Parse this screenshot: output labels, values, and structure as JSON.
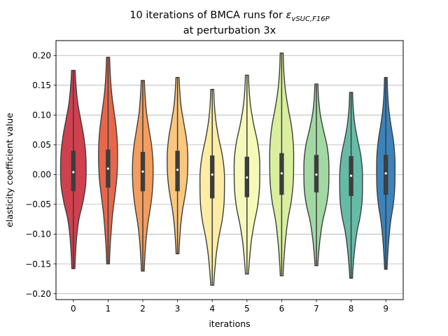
{
  "chart_data": {
    "type": "violin",
    "title_line1_main": "10 iterations of BMCA runs for ",
    "title_symbol": "ε",
    "title_subscript": "vSUC,F16P",
    "title_line2": "at perturbation 3x",
    "xlabel": "iterations",
    "ylabel": "elasticity coefficient value",
    "ylim": [
      -0.21,
      0.225
    ],
    "yticks": [
      "0.20",
      "0.15",
      "0.10",
      "0.05",
      "0.00",
      "−0.05",
      "−0.10",
      "−0.15",
      "−0.20"
    ],
    "ytick_values": [
      0.2,
      0.15,
      0.1,
      0.05,
      0.0,
      -0.05,
      -0.1,
      -0.15,
      -0.2
    ],
    "grid": "horizontal",
    "categories": [
      "0",
      "1",
      "2",
      "3",
      "4",
      "5",
      "6",
      "7",
      "8",
      "9"
    ],
    "series": [
      {
        "min": -0.158,
        "q1": -0.028,
        "median": 0.004,
        "q3": 0.04,
        "max": 0.175,
        "color": "#d0404f",
        "width": 0.86,
        "shape": [
          0.08,
          0.16,
          0.3,
          0.55,
          0.8,
          0.96,
          1.0,
          0.95,
          0.72,
          0.4,
          0.22,
          0.12,
          0.06
        ]
      },
      {
        "min": -0.15,
        "q1": -0.022,
        "median": 0.01,
        "q3": 0.042,
        "max": 0.197,
        "color": "#e8674a",
        "width": 0.62,
        "shape": [
          0.08,
          0.16,
          0.3,
          0.55,
          0.82,
          0.98,
          1.0,
          0.92,
          0.7,
          0.45,
          0.28,
          0.14,
          0.06
        ]
      },
      {
        "min": -0.162,
        "q1": -0.028,
        "median": 0.005,
        "q3": 0.038,
        "max": 0.158,
        "color": "#f59d5c",
        "width": 0.68,
        "shape": [
          0.08,
          0.16,
          0.3,
          0.55,
          0.82,
          0.98,
          1.0,
          0.92,
          0.72,
          0.45,
          0.26,
          0.14,
          0.06
        ]
      },
      {
        "min": -0.133,
        "q1": -0.028,
        "median": 0.008,
        "q3": 0.04,
        "max": 0.163,
        "color": "#fbc77d",
        "width": 0.68,
        "shape": [
          0.08,
          0.16,
          0.3,
          0.55,
          0.82,
          0.98,
          1.0,
          0.92,
          0.72,
          0.45,
          0.26,
          0.14,
          0.06
        ]
      },
      {
        "min": -0.186,
        "q1": -0.04,
        "median": 0.0,
        "q3": 0.032,
        "max": 0.143,
        "color": "#fdeca3",
        "width": 0.82,
        "shape": [
          0.06,
          0.12,
          0.26,
          0.5,
          0.8,
          0.98,
          1.0,
          0.96,
          0.8,
          0.52,
          0.3,
          0.16,
          0.06
        ]
      },
      {
        "min": -0.167,
        "q1": -0.038,
        "median": -0.005,
        "q3": 0.03,
        "max": 0.167,
        "color": "#f6fab8",
        "width": 0.86,
        "shape": [
          0.06,
          0.12,
          0.26,
          0.5,
          0.8,
          0.98,
          1.0,
          0.96,
          0.8,
          0.52,
          0.3,
          0.16,
          0.06
        ]
      },
      {
        "min": -0.17,
        "q1": -0.034,
        "median": 0.002,
        "q3": 0.036,
        "max": 0.204,
        "color": "#d9ef9e",
        "width": 0.8,
        "shape": [
          0.06,
          0.12,
          0.26,
          0.52,
          0.82,
          0.98,
          1.0,
          0.96,
          0.78,
          0.48,
          0.28,
          0.14,
          0.05
        ]
      },
      {
        "min": -0.153,
        "q1": -0.03,
        "median": 0.0,
        "q3": 0.033,
        "max": 0.152,
        "color": "#a2d9a3",
        "width": 0.84,
        "shape": [
          0.06,
          0.12,
          0.26,
          0.52,
          0.82,
          0.98,
          1.0,
          0.96,
          0.78,
          0.48,
          0.28,
          0.14,
          0.05
        ]
      },
      {
        "min": -0.174,
        "q1": -0.036,
        "median": -0.002,
        "q3": 0.031,
        "max": 0.138,
        "color": "#66bba7",
        "width": 0.76,
        "shape": [
          0.06,
          0.12,
          0.26,
          0.52,
          0.82,
          0.98,
          1.0,
          0.96,
          0.78,
          0.48,
          0.28,
          0.14,
          0.05
        ]
      },
      {
        "min": -0.159,
        "q1": -0.034,
        "median": 0.002,
        "q3": 0.033,
        "max": 0.163,
        "color": "#3c83bb",
        "width": 0.6,
        "shape": [
          0.06,
          0.12,
          0.26,
          0.52,
          0.82,
          0.98,
          1.0,
          0.96,
          0.78,
          0.48,
          0.28,
          0.14,
          0.05
        ]
      }
    ]
  }
}
